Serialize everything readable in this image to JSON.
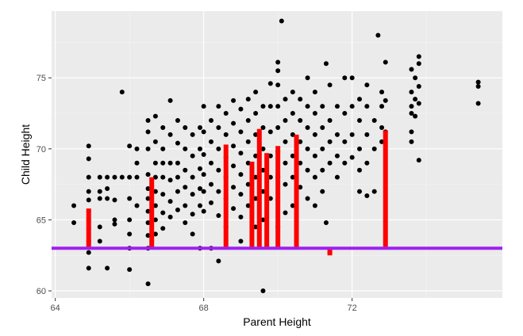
{
  "chart_data": {
    "type": "scatter",
    "title": "",
    "xlabel": "Parent Height",
    "ylabel": "Child Height",
    "xlim": [
      63.9,
      76.05
    ],
    "ylim": [
      59.5,
      79.7
    ],
    "x_ticks": [
      64,
      68,
      72
    ],
    "y_ticks": [
      60,
      65,
      70,
      75
    ],
    "x_tick_labels": [
      "64",
      "68",
      "72"
    ],
    "y_tick_labels": [
      "60",
      "65",
      "70",
      "75"
    ],
    "grid": true,
    "legend": "none",
    "colors": {
      "panel_background": "#ebebeb",
      "grid_major": "#ffffff",
      "grid_minor": "#f5f5f5",
      "points": "#000000",
      "residual_bars": "#ff0000",
      "reference_line": "#a020f0"
    },
    "reference_line": {
      "orientation": "horizontal",
      "y": 63.0
    },
    "residual_bars": [
      {
        "x": 64.9,
        "y": 65.8
      },
      {
        "x": 66.6,
        "y": 68.0
      },
      {
        "x": 68.6,
        "y": 70.3
      },
      {
        "x": 69.3,
        "y": 69.1
      },
      {
        "x": 69.5,
        "y": 71.4
      },
      {
        "x": 69.7,
        "y": 69.7
      },
      {
        "x": 70.0,
        "y": 70.2
      },
      {
        "x": 70.5,
        "y": 71.0
      },
      {
        "x": 71.4,
        "y": 62.5
      },
      {
        "x": 72.9,
        "y": 71.3
      }
    ],
    "points": [
      {
        "x": 64.5,
        "y": 66.0
      },
      {
        "x": 64.5,
        "y": 64.8
      },
      {
        "x": 64.9,
        "y": 70.2
      },
      {
        "x": 64.9,
        "y": 69.3
      },
      {
        "x": 64.9,
        "y": 68.0
      },
      {
        "x": 64.9,
        "y": 67.0
      },
      {
        "x": 64.9,
        "y": 66.4
      },
      {
        "x": 64.9,
        "y": 65.6
      },
      {
        "x": 64.9,
        "y": 65.0
      },
      {
        "x": 64.9,
        "y": 64.4
      },
      {
        "x": 64.9,
        "y": 63.5
      },
      {
        "x": 64.9,
        "y": 62.7
      },
      {
        "x": 64.9,
        "y": 61.6
      },
      {
        "x": 65.2,
        "y": 68.0
      },
      {
        "x": 65.2,
        "y": 67.0
      },
      {
        "x": 65.2,
        "y": 66.5
      },
      {
        "x": 65.2,
        "y": 64.5
      },
      {
        "x": 65.2,
        "y": 63.5
      },
      {
        "x": 65.4,
        "y": 68.0
      },
      {
        "x": 65.4,
        "y": 67.2
      },
      {
        "x": 65.4,
        "y": 66.5
      },
      {
        "x": 65.4,
        "y": 61.6
      },
      {
        "x": 65.6,
        "y": 68.0
      },
      {
        "x": 65.6,
        "y": 66.4
      },
      {
        "x": 65.6,
        "y": 65.0
      },
      {
        "x": 65.6,
        "y": 64.7
      },
      {
        "x": 65.8,
        "y": 74.0
      },
      {
        "x": 65.8,
        "y": 68.0
      },
      {
        "x": 66.0,
        "y": 70.2
      },
      {
        "x": 66.0,
        "y": 68.0
      },
      {
        "x": 66.0,
        "y": 66.5
      },
      {
        "x": 66.0,
        "y": 65.0
      },
      {
        "x": 66.0,
        "y": 64.0
      },
      {
        "x": 66.0,
        "y": 63.0
      },
      {
        "x": 66.0,
        "y": 61.5
      },
      {
        "x": 66.2,
        "y": 70.0
      },
      {
        "x": 66.2,
        "y": 69.0
      },
      {
        "x": 66.2,
        "y": 68.0
      },
      {
        "x": 66.2,
        "y": 66.0
      },
      {
        "x": 66.5,
        "y": 72.0
      },
      {
        "x": 66.5,
        "y": 71.2
      },
      {
        "x": 66.5,
        "y": 70.0
      },
      {
        "x": 66.5,
        "y": 68.2
      },
      {
        "x": 66.5,
        "y": 67.2
      },
      {
        "x": 66.5,
        "y": 66.5
      },
      {
        "x": 66.5,
        "y": 65.6
      },
      {
        "x": 66.5,
        "y": 64.8
      },
      {
        "x": 66.5,
        "y": 63.9
      },
      {
        "x": 66.5,
        "y": 63.0
      },
      {
        "x": 66.5,
        "y": 60.5
      },
      {
        "x": 66.7,
        "y": 72.3
      },
      {
        "x": 66.7,
        "y": 70.5
      },
      {
        "x": 66.7,
        "y": 69.0
      },
      {
        "x": 66.7,
        "y": 68.0
      },
      {
        "x": 66.7,
        "y": 67.0
      },
      {
        "x": 66.7,
        "y": 66.0
      },
      {
        "x": 66.7,
        "y": 65.0
      },
      {
        "x": 66.7,
        "y": 64.0
      },
      {
        "x": 66.9,
        "y": 71.5
      },
      {
        "x": 66.9,
        "y": 70.0
      },
      {
        "x": 66.9,
        "y": 69.0
      },
      {
        "x": 66.9,
        "y": 68.0
      },
      {
        "x": 66.9,
        "y": 66.8
      },
      {
        "x": 66.9,
        "y": 65.5
      },
      {
        "x": 66.9,
        "y": 64.4
      },
      {
        "x": 67.1,
        "y": 73.4
      },
      {
        "x": 67.1,
        "y": 71.0
      },
      {
        "x": 67.1,
        "y": 69.0
      },
      {
        "x": 67.1,
        "y": 67.8
      },
      {
        "x": 67.1,
        "y": 66.3
      },
      {
        "x": 67.1,
        "y": 65.2
      },
      {
        "x": 67.3,
        "y": 72.0
      },
      {
        "x": 67.3,
        "y": 70.4
      },
      {
        "x": 67.3,
        "y": 69.0
      },
      {
        "x": 67.3,
        "y": 68.0
      },
      {
        "x": 67.3,
        "y": 67.0
      },
      {
        "x": 67.3,
        "y": 65.7
      },
      {
        "x": 67.5,
        "y": 71.5
      },
      {
        "x": 67.5,
        "y": 70.0
      },
      {
        "x": 67.5,
        "y": 68.5
      },
      {
        "x": 67.5,
        "y": 67.3
      },
      {
        "x": 67.5,
        "y": 66.0
      },
      {
        "x": 67.5,
        "y": 64.8
      },
      {
        "x": 67.7,
        "y": 71.0
      },
      {
        "x": 67.7,
        "y": 69.5
      },
      {
        "x": 67.7,
        "y": 68.0
      },
      {
        "x": 67.7,
        "y": 66.8
      },
      {
        "x": 67.7,
        "y": 65.4
      },
      {
        "x": 67.7,
        "y": 64.0
      },
      {
        "x": 67.9,
        "y": 71.5
      },
      {
        "x": 67.9,
        "y": 70.0
      },
      {
        "x": 67.9,
        "y": 68.6
      },
      {
        "x": 67.9,
        "y": 67.2
      },
      {
        "x": 67.9,
        "y": 66.0
      },
      {
        "x": 67.9,
        "y": 63.0
      },
      {
        "x": 68.0,
        "y": 73.0
      },
      {
        "x": 68.0,
        "y": 71.2
      },
      {
        "x": 68.0,
        "y": 69.6
      },
      {
        "x": 68.0,
        "y": 68.2
      },
      {
        "x": 68.0,
        "y": 67.0
      },
      {
        "x": 68.0,
        "y": 65.6
      },
      {
        "x": 68.2,
        "y": 72.0
      },
      {
        "x": 68.2,
        "y": 70.5
      },
      {
        "x": 68.2,
        "y": 69.0
      },
      {
        "x": 68.2,
        "y": 67.5
      },
      {
        "x": 68.2,
        "y": 66.2
      },
      {
        "x": 68.2,
        "y": 63.0
      },
      {
        "x": 68.4,
        "y": 73.0
      },
      {
        "x": 68.4,
        "y": 71.5
      },
      {
        "x": 68.4,
        "y": 70.0
      },
      {
        "x": 68.4,
        "y": 68.5
      },
      {
        "x": 68.4,
        "y": 67.0
      },
      {
        "x": 68.4,
        "y": 65.3
      },
      {
        "x": 68.4,
        "y": 62.1
      },
      {
        "x": 68.6,
        "y": 72.5
      },
      {
        "x": 68.6,
        "y": 71.0
      },
      {
        "x": 68.6,
        "y": 69.4
      },
      {
        "x": 68.6,
        "y": 68.0
      },
      {
        "x": 68.6,
        "y": 66.5
      },
      {
        "x": 68.6,
        "y": 64.5
      },
      {
        "x": 68.8,
        "y": 73.4
      },
      {
        "x": 68.8,
        "y": 71.8
      },
      {
        "x": 68.8,
        "y": 70.2
      },
      {
        "x": 68.8,
        "y": 68.8
      },
      {
        "x": 68.8,
        "y": 67.3
      },
      {
        "x": 68.8,
        "y": 65.8
      },
      {
        "x": 69.0,
        "y": 72.8
      },
      {
        "x": 69.0,
        "y": 71.2
      },
      {
        "x": 69.0,
        "y": 69.7
      },
      {
        "x": 69.0,
        "y": 68.2
      },
      {
        "x": 69.0,
        "y": 66.8
      },
      {
        "x": 69.0,
        "y": 65.2
      },
      {
        "x": 69.0,
        "y": 63.5
      },
      {
        "x": 69.2,
        "y": 73.5
      },
      {
        "x": 69.2,
        "y": 72.0
      },
      {
        "x": 69.2,
        "y": 70.5
      },
      {
        "x": 69.2,
        "y": 69.0
      },
      {
        "x": 69.2,
        "y": 67.5
      },
      {
        "x": 69.2,
        "y": 66.0
      },
      {
        "x": 69.4,
        "y": 74.0
      },
      {
        "x": 69.4,
        "y": 72.5
      },
      {
        "x": 69.4,
        "y": 71.0
      },
      {
        "x": 69.4,
        "y": 69.5
      },
      {
        "x": 69.4,
        "y": 68.0
      },
      {
        "x": 69.4,
        "y": 66.5
      },
      {
        "x": 69.4,
        "y": 64.5
      },
      {
        "x": 69.6,
        "y": 73.0
      },
      {
        "x": 69.6,
        "y": 71.5
      },
      {
        "x": 69.6,
        "y": 70.0
      },
      {
        "x": 69.6,
        "y": 68.5
      },
      {
        "x": 69.6,
        "y": 67.0
      },
      {
        "x": 69.6,
        "y": 65.0
      },
      {
        "x": 69.6,
        "y": 60.0
      },
      {
        "x": 69.8,
        "y": 74.6
      },
      {
        "x": 69.8,
        "y": 73.0
      },
      {
        "x": 69.8,
        "y": 71.2
      },
      {
        "x": 69.8,
        "y": 69.5
      },
      {
        "x": 69.8,
        "y": 68.0
      },
      {
        "x": 69.8,
        "y": 66.5
      },
      {
        "x": 70.0,
        "y": 76.1
      },
      {
        "x": 70.0,
        "y": 75.5
      },
      {
        "x": 70.0,
        "y": 74.5
      },
      {
        "x": 70.0,
        "y": 73.0
      },
      {
        "x": 70.0,
        "y": 71.5
      },
      {
        "x": 70.0,
        "y": 69.8
      },
      {
        "x": 70.0,
        "y": 68.0
      },
      {
        "x": 70.0,
        "y": 66.4
      },
      {
        "x": 70.0,
        "y": 64.5
      },
      {
        "x": 70.1,
        "y": 79.0
      },
      {
        "x": 70.2,
        "y": 73.5
      },
      {
        "x": 70.2,
        "y": 72.0
      },
      {
        "x": 70.2,
        "y": 70.5
      },
      {
        "x": 70.2,
        "y": 69.0
      },
      {
        "x": 70.2,
        "y": 67.5
      },
      {
        "x": 70.2,
        "y": 65.5
      },
      {
        "x": 70.4,
        "y": 74.0
      },
      {
        "x": 70.4,
        "y": 72.5
      },
      {
        "x": 70.4,
        "y": 71.0
      },
      {
        "x": 70.4,
        "y": 69.5
      },
      {
        "x": 70.4,
        "y": 68.0
      },
      {
        "x": 70.4,
        "y": 66.0
      },
      {
        "x": 70.6,
        "y": 73.5
      },
      {
        "x": 70.6,
        "y": 72.0
      },
      {
        "x": 70.6,
        "y": 70.5
      },
      {
        "x": 70.6,
        "y": 69.0
      },
      {
        "x": 70.6,
        "y": 67.3
      },
      {
        "x": 70.8,
        "y": 75.0
      },
      {
        "x": 70.8,
        "y": 73.0
      },
      {
        "x": 70.8,
        "y": 71.5
      },
      {
        "x": 70.8,
        "y": 70.0
      },
      {
        "x": 70.8,
        "y": 68.5
      },
      {
        "x": 70.8,
        "y": 66.5
      },
      {
        "x": 71.0,
        "y": 74.0
      },
      {
        "x": 71.0,
        "y": 72.5
      },
      {
        "x": 71.0,
        "y": 71.0
      },
      {
        "x": 71.0,
        "y": 69.5
      },
      {
        "x": 71.0,
        "y": 68.0
      },
      {
        "x": 71.0,
        "y": 66.0
      },
      {
        "x": 71.2,
        "y": 73.0
      },
      {
        "x": 71.2,
        "y": 71.5
      },
      {
        "x": 71.2,
        "y": 70.0
      },
      {
        "x": 71.2,
        "y": 68.5
      },
      {
        "x": 71.2,
        "y": 67.0
      },
      {
        "x": 71.3,
        "y": 76.0
      },
      {
        "x": 71.3,
        "y": 64.8
      },
      {
        "x": 71.4,
        "y": 74.5
      },
      {
        "x": 71.4,
        "y": 72.0
      },
      {
        "x": 71.4,
        "y": 70.5
      },
      {
        "x": 71.4,
        "y": 69.0
      },
      {
        "x": 71.4,
        "y": 62.7
      },
      {
        "x": 71.6,
        "y": 73.0
      },
      {
        "x": 71.6,
        "y": 71.0
      },
      {
        "x": 71.6,
        "y": 69.5
      },
      {
        "x": 71.6,
        "y": 68.0
      },
      {
        "x": 71.8,
        "y": 75.0
      },
      {
        "x": 71.8,
        "y": 72.5
      },
      {
        "x": 71.8,
        "y": 70.5
      },
      {
        "x": 71.8,
        "y": 69.0
      },
      {
        "x": 72.0,
        "y": 75.0
      },
      {
        "x": 72.0,
        "y": 73.0
      },
      {
        "x": 72.0,
        "y": 71.0
      },
      {
        "x": 72.0,
        "y": 69.4
      },
      {
        "x": 72.2,
        "y": 73.5
      },
      {
        "x": 72.2,
        "y": 72.0
      },
      {
        "x": 72.2,
        "y": 70.0
      },
      {
        "x": 72.2,
        "y": 68.5
      },
      {
        "x": 72.2,
        "y": 67.0
      },
      {
        "x": 72.4,
        "y": 74.5
      },
      {
        "x": 72.4,
        "y": 73.0
      },
      {
        "x": 72.4,
        "y": 71.0
      },
      {
        "x": 72.4,
        "y": 69.0
      },
      {
        "x": 72.4,
        "y": 66.7
      },
      {
        "x": 72.6,
        "y": 72.0
      },
      {
        "x": 72.6,
        "y": 70.0
      },
      {
        "x": 72.6,
        "y": 67.0
      },
      {
        "x": 72.7,
        "y": 78.0
      },
      {
        "x": 72.8,
        "y": 74.0
      },
      {
        "x": 72.8,
        "y": 73.0
      },
      {
        "x": 72.8,
        "y": 71.5
      },
      {
        "x": 72.8,
        "y": 70.5
      },
      {
        "x": 72.9,
        "y": 76.1
      },
      {
        "x": 72.9,
        "y": 73.4
      },
      {
        "x": 72.9,
        "y": 71.2
      },
      {
        "x": 73.6,
        "y": 75.6
      },
      {
        "x": 73.6,
        "y": 74.0
      },
      {
        "x": 73.6,
        "y": 73.0
      },
      {
        "x": 73.6,
        "y": 72.5
      },
      {
        "x": 73.6,
        "y": 71.2
      },
      {
        "x": 73.6,
        "y": 70.5
      },
      {
        "x": 73.7,
        "y": 75.0
      },
      {
        "x": 73.7,
        "y": 73.5
      },
      {
        "x": 73.7,
        "y": 72.3
      },
      {
        "x": 73.8,
        "y": 76.5
      },
      {
        "x": 73.8,
        "y": 76.0
      },
      {
        "x": 73.8,
        "y": 74.4
      },
      {
        "x": 73.8,
        "y": 73.2
      },
      {
        "x": 73.8,
        "y": 69.2
      },
      {
        "x": 75.4,
        "y": 74.7
      },
      {
        "x": 75.4,
        "y": 74.4
      },
      {
        "x": 75.4,
        "y": 73.2
      }
    ]
  }
}
